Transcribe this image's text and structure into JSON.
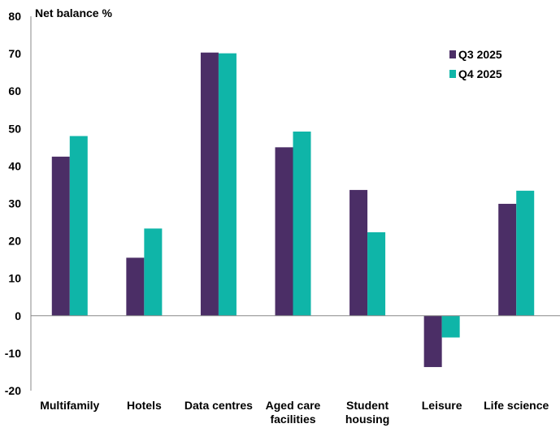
{
  "chart_data": {
    "type": "bar",
    "ylabel": "Net balance %",
    "ylim": [
      -20,
      80
    ],
    "yticks": [
      80,
      70,
      60,
      50,
      40,
      30,
      20,
      10,
      0,
      -10,
      -20
    ],
    "grid": false,
    "legend_position": "top-right",
    "categories": [
      [
        "Multifamily"
      ],
      [
        "Hotels"
      ],
      [
        "Data centres"
      ],
      [
        "Aged care",
        "facilities"
      ],
      [
        "Student",
        "housing"
      ],
      [
        "Leisure"
      ],
      [
        "Life science"
      ]
    ],
    "series": [
      {
        "name": "Q3 2025",
        "color": "#4b2e66",
        "values": [
          42.5,
          15.5,
          70.3,
          45.0,
          33.6,
          -13.7,
          29.9
        ]
      },
      {
        "name": "Q4 2025",
        "color": "#0fb5a8",
        "values": [
          48.0,
          23.3,
          70.1,
          49.2,
          22.3,
          -5.8,
          33.4
        ]
      }
    ]
  }
}
